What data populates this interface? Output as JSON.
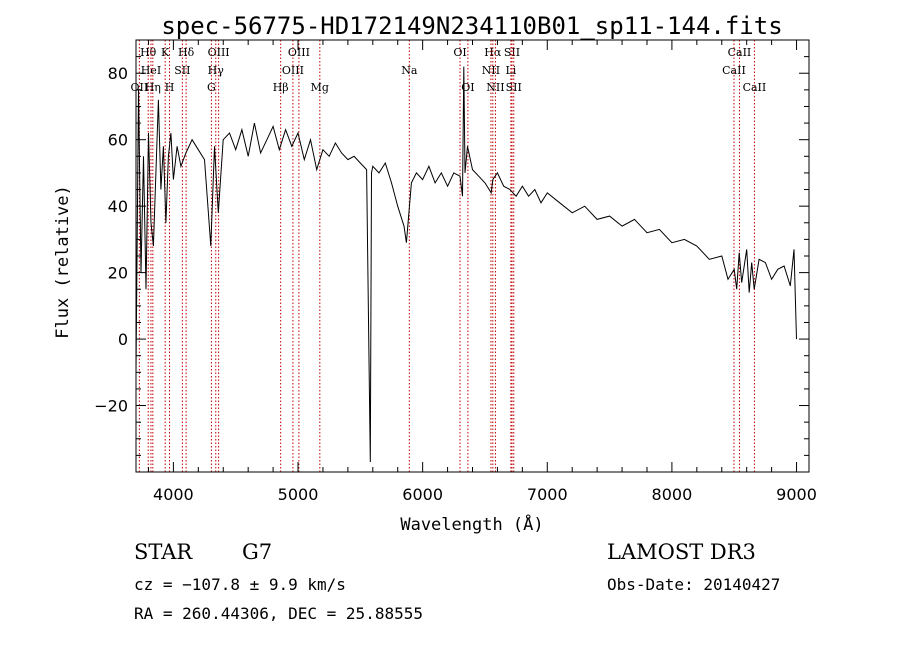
{
  "chart_data": {
    "type": "line",
    "title": "spec-56775-HD172149N234110B01_sp11-144.fits",
    "xlabel": "Wavelength (Å)",
    "ylabel": "Flux (relative)",
    "xlim": [
      3700,
      9100
    ],
    "ylim": [
      -40,
      90
    ],
    "xticks": [
      4000,
      5000,
      6000,
      7000,
      8000,
      9000
    ],
    "yticks": [
      -20,
      0,
      20,
      40,
      60,
      80
    ],
    "series": [
      {
        "name": "flux",
        "x": [
          3700,
          3720,
          3740,
          3760,
          3780,
          3800,
          3820,
          3840,
          3860,
          3880,
          3900,
          3920,
          3940,
          3960,
          3980,
          4000,
          4030,
          4060,
          4100,
          4150,
          4200,
          4250,
          4300,
          4330,
          4360,
          4400,
          4450,
          4500,
          4550,
          4600,
          4650,
          4700,
          4750,
          4800,
          4850,
          4900,
          4950,
          5000,
          5050,
          5100,
          5150,
          5200,
          5250,
          5300,
          5350,
          5400,
          5450,
          5500,
          5550,
          5580,
          5590,
          5600,
          5650,
          5700,
          5750,
          5800,
          5850,
          5870,
          5890,
          5910,
          5950,
          6000,
          6050,
          6100,
          6150,
          6200,
          6250,
          6300,
          6320,
          6330,
          6340,
          6360,
          6400,
          6450,
          6500,
          6550,
          6563,
          6600,
          6650,
          6700,
          6750,
          6800,
          6850,
          6900,
          6950,
          7000,
          7100,
          7200,
          7300,
          7400,
          7500,
          7600,
          7700,
          7800,
          7900,
          8000,
          8100,
          8200,
          8300,
          8400,
          8450,
          8500,
          8520,
          8540,
          8560,
          8600,
          8620,
          8640,
          8660,
          8700,
          8750,
          8800,
          8850,
          8900,
          8950,
          8980,
          9000
        ],
        "values": [
          -10,
          75,
          20,
          55,
          15,
          62,
          35,
          28,
          50,
          72,
          45,
          58,
          35,
          55,
          62,
          48,
          58,
          52,
          56,
          60,
          57,
          54,
          28,
          58,
          38,
          60,
          62,
          57,
          63,
          55,
          65,
          56,
          60,
          64,
          57,
          63,
          58,
          62,
          54,
          60,
          51,
          57,
          55,
          59,
          56,
          54,
          55,
          53,
          51,
          -37,
          50,
          52,
          50,
          53,
          47,
          40,
          34,
          29,
          38,
          47,
          50,
          48,
          52,
          47,
          50,
          46,
          50,
          49,
          43,
          82,
          50,
          58,
          51,
          49,
          47,
          44,
          48,
          50,
          46,
          45,
          43,
          46,
          43,
          45,
          41,
          44,
          41,
          38,
          40,
          36,
          37,
          34,
          36,
          32,
          33,
          29,
          30,
          28,
          24,
          25,
          18,
          21,
          15,
          26,
          17,
          27,
          14,
          23,
          15,
          24,
          23,
          18,
          21,
          22,
          16,
          27,
          0
        ]
      }
    ],
    "spectral_lines": [
      {
        "label": "OII",
        "wavelength": 3727,
        "row": 3
      },
      {
        "label": "Hθ",
        "wavelength": 3798,
        "row": 1
      },
      {
        "label": "HeI",
        "wavelength": 3820,
        "row": 2
      },
      {
        "label": "Hη",
        "wavelength": 3835,
        "row": 3
      },
      {
        "label": "K",
        "wavelength": 3934,
        "row": 1
      },
      {
        "label": "SII",
        "wavelength": 4072,
        "row": 2
      },
      {
        "label": "H",
        "wavelength": 3969,
        "row": 3
      },
      {
        "label": "Hδ",
        "wavelength": 4102,
        "row": 1
      },
      {
        "label": "OIII",
        "wavelength": 4363,
        "row": 1
      },
      {
        "label": "Hγ",
        "wavelength": 4340,
        "row": 2
      },
      {
        "label": "G",
        "wavelength": 4305,
        "row": 3
      },
      {
        "label": "Hβ",
        "wavelength": 4861,
        "row": 3
      },
      {
        "label": "OIII",
        "wavelength": 4959,
        "row": 2
      },
      {
        "label": "OIII",
        "wavelength": 5007,
        "row": 1
      },
      {
        "label": "Mg",
        "wavelength": 5175,
        "row": 3
      },
      {
        "label": "Na",
        "wavelength": 5893,
        "row": 2
      },
      {
        "label": "OI",
        "wavelength": 6300,
        "row": 1
      },
      {
        "label": "OI",
        "wavelength": 6363,
        "row": 3
      },
      {
        "label": "Hα",
        "wavelength": 6563,
        "row": 1
      },
      {
        "label": "NII",
        "wavelength": 6548,
        "row": 2
      },
      {
        "label": "NII",
        "wavelength": 6584,
        "row": 3
      },
      {
        "label": "SII",
        "wavelength": 6717,
        "row": 1
      },
      {
        "label": "Li",
        "wavelength": 6708,
        "row": 2
      },
      {
        "label": "SII",
        "wavelength": 6731,
        "row": 3
      },
      {
        "label": "CaII",
        "wavelength": 8542,
        "row": 1
      },
      {
        "label": "CaII",
        "wavelength": 8498,
        "row": 2
      },
      {
        "label": "CaII",
        "wavelength": 8662,
        "row": 3
      }
    ],
    "colors": {
      "line": "#000000",
      "marker": "#c00000",
      "axis": "#000000",
      "background": "#ffffff"
    }
  },
  "info": {
    "object_type": "STAR",
    "subclass": "G7",
    "survey": "LAMOST DR3",
    "redshift": "cz = −107.8 ± 9.9 km/s",
    "obs_date": "Obs-Date: 20140427",
    "coords": "RA = 260.44306, DEC =  25.88555"
  }
}
